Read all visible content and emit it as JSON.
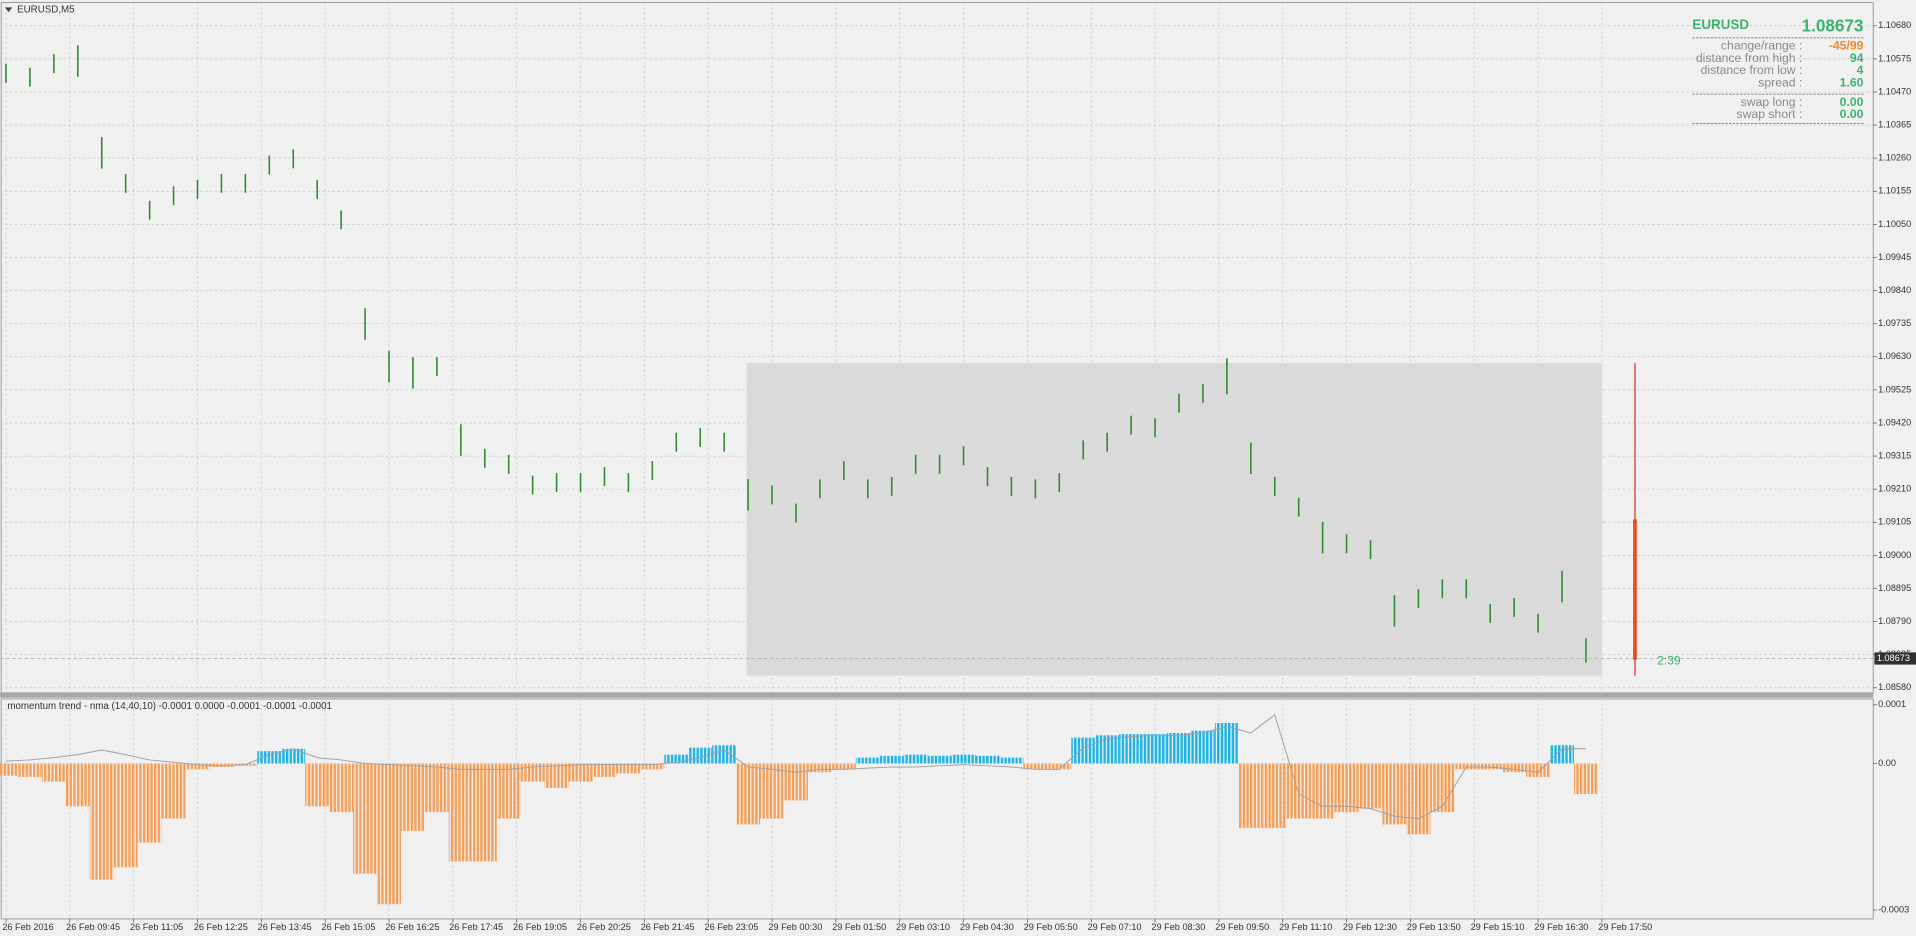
{
  "chart_data": [
    {
      "type": "range-bar",
      "title": "EURUSD,M5",
      "color": "#2e8b2e",
      "grid": true,
      "x": [
        0,
        6,
        12,
        18,
        24,
        30,
        36,
        42,
        48,
        54,
        60,
        66,
        72,
        78,
        84,
        90,
        96,
        102,
        108,
        114,
        120,
        126,
        132,
        138,
        144,
        150,
        156,
        162,
        168,
        174,
        180,
        186,
        192,
        198,
        204,
        210,
        216,
        222,
        228,
        234,
        240,
        246,
        252,
        258,
        264,
        270,
        276,
        282,
        288,
        294,
        300,
        306,
        312,
        318,
        324,
        330,
        336,
        342,
        348,
        354,
        360,
        366,
        372,
        378,
        384,
        390,
        396
      ],
      "high": [
        1.10559,
        1.10547,
        1.1059,
        1.10618,
        1.10327,
        1.1021,
        1.10125,
        1.10171,
        1.10191,
        1.1021,
        1.1021,
        1.10268,
        1.10288,
        1.10191,
        1.10094,
        1.09784,
        1.09649,
        1.09629,
        1.09629,
        1.09416,
        1.09338,
        1.09319,
        1.09253,
        1.09261,
        1.09261,
        1.0928,
        1.09261,
        1.09299,
        1.09389,
        1.09404,
        1.09389,
        1.09242,
        1.09222,
        1.09164,
        1.09241,
        1.09299,
        1.09241,
        1.09249,
        1.09319,
        1.09319,
        1.09346,
        1.0928,
        1.09249,
        1.09241,
        1.09261,
        1.09365,
        1.09389,
        1.09443,
        1.09435,
        1.09513,
        1.09544,
        1.09625,
        1.09358,
        1.09249,
        1.09183,
        1.09106,
        1.09067,
        1.09048,
        1.08874,
        1.08893,
        1.08924,
        1.08924,
        1.08846,
        1.08865,
        1.08815,
        1.08951,
        1.08737
      ],
      "low": [
        1.10499,
        1.10487,
        1.1053,
        1.10518,
        1.10227,
        1.1015,
        1.10065,
        1.10111,
        1.10131,
        1.1015,
        1.1015,
        1.10208,
        1.10228,
        1.10131,
        1.10034,
        1.09684,
        1.09549,
        1.09529,
        1.09569,
        1.09316,
        1.09278,
        1.09259,
        1.09193,
        1.09201,
        1.09201,
        1.0922,
        1.09201,
        1.09239,
        1.09329,
        1.09344,
        1.09329,
        1.09142,
        1.09162,
        1.09104,
        1.09181,
        1.09239,
        1.09181,
        1.09189,
        1.09259,
        1.09259,
        1.09286,
        1.0922,
        1.09189,
        1.09181,
        1.09201,
        1.09305,
        1.09329,
        1.09383,
        1.09375,
        1.09453,
        1.09484,
        1.09511,
        1.09258,
        1.09189,
        1.09123,
        1.09006,
        1.09007,
        1.08988,
        1.08774,
        1.08833,
        1.08864,
        1.08864,
        1.08786,
        1.08805,
        1.08755,
        1.08851,
        1.0866
      ],
      "xlim": [
        -1.5,
        468
      ],
      "ylim": [
        1.08564,
        1.10754
      ],
      "xticks": [
        {
          "value": 0,
          "label": "26 Feb 2016"
        },
        {
          "value": 16,
          "label": "26 Feb 09:45"
        },
        {
          "value": 32,
          "label": "26 Feb 11:05"
        },
        {
          "value": 48,
          "label": "26 Feb 12:25"
        },
        {
          "value": 64,
          "label": "26 Feb 13:45"
        },
        {
          "value": 80,
          "label": "26 Feb 15:05"
        },
        {
          "value": 96,
          "label": "26 Feb 16:25"
        },
        {
          "value": 112,
          "label": "26 Feb 17:45"
        },
        {
          "value": 128,
          "label": "26 Feb 19:05"
        },
        {
          "value": 144,
          "label": "26 Feb 20:25"
        },
        {
          "value": 160,
          "label": "26 Feb 21:45"
        },
        {
          "value": 176,
          "label": "26 Feb 23:05"
        },
        {
          "value": 192,
          "label": "29 Feb 00:30"
        },
        {
          "value": 208,
          "label": "29 Feb 01:50"
        },
        {
          "value": 224,
          "label": "29 Feb 03:10"
        },
        {
          "value": 240,
          "label": "29 Feb 04:30"
        },
        {
          "value": 256,
          "label": "29 Feb 05:50"
        },
        {
          "value": 272,
          "label": "29 Feb 07:10"
        },
        {
          "value": 288,
          "label": "29 Feb 08:30"
        },
        {
          "value": 304,
          "label": "29 Feb 09:50"
        },
        {
          "value": 320,
          "label": "29 Feb 11:10"
        },
        {
          "value": 336,
          "label": "29 Feb 12:30"
        },
        {
          "value": 352,
          "label": "29 Feb 13:50"
        },
        {
          "value": 368,
          "label": "29 Feb 15:10"
        },
        {
          "value": 384,
          "label": "29 Feb 16:30"
        },
        {
          "value": 400,
          "label": "29 Feb 17:50"
        }
      ],
      "yticks": [
        {
          "value": 1.1068,
          "label": "1.10680"
        },
        {
          "value": 1.10575,
          "label": "1.10575"
        },
        {
          "value": 1.1047,
          "label": "1.10470"
        },
        {
          "value": 1.10365,
          "label": "1.10365"
        },
        {
          "value": 1.1026,
          "label": "1.10260"
        },
        {
          "value": 1.10155,
          "label": "1.10155"
        },
        {
          "value": 1.1005,
          "label": "1.10050"
        },
        {
          "value": 1.09945,
          "label": "1.09945"
        },
        {
          "value": 1.0984,
          "label": "1.09840"
        },
        {
          "value": 1.09735,
          "label": "1.09735"
        },
        {
          "value": 1.0963,
          "label": "1.09630"
        },
        {
          "value": 1.09525,
          "label": "1.09525"
        },
        {
          "value": 1.0942,
          "label": "1.09420"
        },
        {
          "value": 1.09315,
          "label": "1.09315"
        },
        {
          "value": 1.0921,
          "label": "1.09210"
        },
        {
          "value": 1.09105,
          "label": "1.09105"
        },
        {
          "value": 1.09,
          "label": "1.09000"
        },
        {
          "value": 1.08895,
          "label": "1.08895"
        },
        {
          "value": 1.0879,
          "label": "1.08790"
        },
        {
          "value": 1.08685,
          "label": "1.08685"
        },
        {
          "value": 1.0858,
          "label": "1.08580"
        }
      ],
      "current_price": {
        "value": 1.08673,
        "label": "1.08673"
      },
      "countdown": "2:39"
    },
    {
      "type": "histogram",
      "title": "momentum trend - nma (14,40,10) -0.0001 0.0000 -0.0001 -0.0001 -0.0001",
      "positive_color": "#1eb4e6",
      "negative_color": "#f5a05a",
      "signal_color": "#a0a0a0",
      "x": [
        0,
        6,
        12,
        18,
        24,
        30,
        36,
        42,
        48,
        54,
        60,
        66,
        72,
        78,
        84,
        90,
        96,
        102,
        108,
        114,
        120,
        126,
        132,
        138,
        144,
        150,
        156,
        162,
        168,
        174,
        180,
        186,
        192,
        198,
        204,
        210,
        216,
        222,
        228,
        234,
        240,
        246,
        252,
        258,
        264,
        270,
        276,
        282,
        288,
        294,
        300,
        306,
        312,
        318,
        324,
        330,
        336,
        342,
        348,
        354,
        360,
        366,
        372,
        378,
        384,
        390,
        396
      ],
      "values": [
        -2.1e-05,
        -2.3e-05,
        -3.1e-05,
        -7.3e-05,
        -0.000198,
        -0.000177,
        -0.000135,
        -9.4e-05,
        -1e-05,
        -6e-06,
        -4e-06,
        2.1e-05,
        2.5e-05,
        -7.3e-05,
        -8.3e-05,
        -0.000188,
        -0.00024,
        -0.000115,
        -8.3e-05,
        -0.000167,
        -0.000167,
        -9.4e-05,
        -3.1e-05,
        -4.2e-05,
        -3.1e-05,
        -2.3e-05,
        -1.7e-05,
        -1e-05,
        1.5e-05,
        2.7e-05,
        3.1e-05,
        -0.000104,
        -9.4e-05,
        -6.3e-05,
        -1.5e-05,
        -1e-05,
        1e-05,
        1.3e-05,
        1.5e-05,
        1.3e-05,
        1.5e-05,
        1.3e-05,
        1e-05,
        -1e-05,
        -1e-05,
        4.4e-05,
        4.8e-05,
        5e-05,
        5e-05,
        5.2e-05,
        5.6e-05,
        6.9e-05,
        -0.00011,
        -0.00011,
        -9.4e-05,
        -9.4e-05,
        -8.3e-05,
        -7.7e-05,
        -0.000104,
        -0.000121,
        -8.3e-05,
        -1e-05,
        -1e-05,
        -1.5e-05,
        -2.3e-05,
        3.1e-05,
        -5.2e-05
      ],
      "signal": [
        4e-06,
        6e-06,
        1e-05,
        1.5e-05,
        2.3e-05,
        1.5e-05,
        6e-06,
        2e-06,
        -2e-06,
        -4e-06,
        -2e-06,
        1.5e-05,
        2.5e-05,
        1e-05,
        6e-06,
        0,
        -2e-06,
        -4e-06,
        -6e-06,
        -1e-05,
        -1e-05,
        -1e-05,
        -6e-06,
        -4e-06,
        -2e-06,
        -2e-06,
        -2e-06,
        -2e-06,
        2e-06,
        1e-05,
        2.3e-05,
        -6e-06,
        -1e-05,
        -1.5e-05,
        -1e-05,
        -1e-05,
        -8e-06,
        -6e-06,
        -6e-06,
        -4e-06,
        -2e-06,
        -4e-06,
        -6e-06,
        -1e-05,
        -1e-05,
        2.7e-05,
        4.2e-05,
        4.6e-05,
        4.8e-05,
        4.8e-05,
        5.2e-05,
        6.3e-05,
        5.2e-05,
        8.3e-05,
        -5.2e-05,
        -7.3e-05,
        -7.3e-05,
        -7.7e-05,
        -9e-05,
        -9.4e-05,
        -7.3e-05,
        -6e-06,
        -6e-06,
        -1e-05,
        -1.5e-05,
        2.5e-05,
        2.5e-05
      ],
      "xlim": [
        -1.5,
        468
      ],
      "ylim": [
        -0.000265,
        0.00011
      ],
      "yticks": [
        0.0001,
        {
          "value": 0,
          "label": "0.00"
        },
        {
          "value": -0.00025,
          "label": "-0.0003"
        }
      ]
    }
  ],
  "info_panel": {
    "symbol": "EURUSD",
    "price": "1.08673",
    "rows": [
      {
        "label": "change/range :",
        "value": "-45/99"
      },
      {
        "label": "distance from high :",
        "value": "94"
      },
      {
        "label": "distance from low :",
        "value": "4"
      },
      {
        "label": "spread :",
        "value": "1.60"
      }
    ],
    "swap_rows": [
      {
        "label": "swap long :",
        "value": "0.00"
      },
      {
        "label": "swap short :",
        "value": "0.00"
      }
    ]
  }
}
